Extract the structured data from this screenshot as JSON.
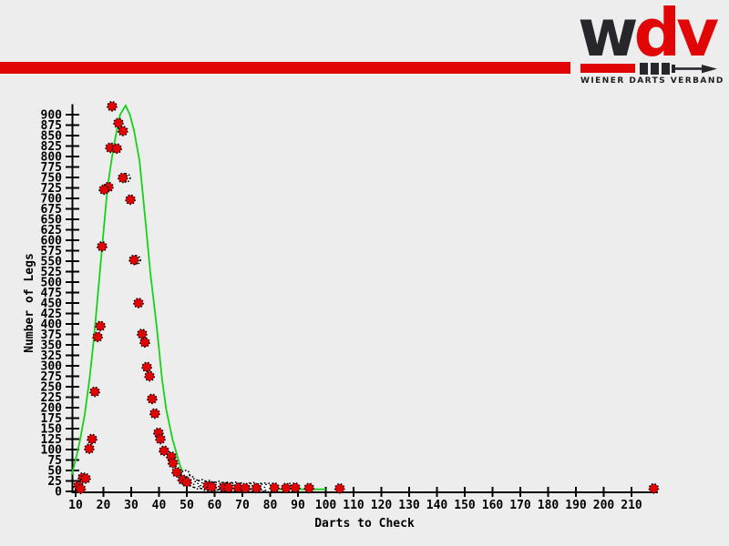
{
  "page": {
    "background": "#ededed"
  },
  "header": {
    "stripe_color": "#e20505"
  },
  "logo": {
    "letters": [
      {
        "char": "w",
        "color": "#26262b"
      },
      {
        "char": "d",
        "color": "#e20505"
      },
      {
        "char": "v",
        "color": "#e20505"
      }
    ],
    "tagline": "WIENER DARTS VERBAND",
    "tagline_color": "#1d1d22",
    "dart_colors": {
      "shaft": "#e20505",
      "dark": "#26262b"
    }
  },
  "chart_data": {
    "type": "scatter",
    "title": "",
    "xlabel": "Darts to Check",
    "ylabel": "Number of Legs",
    "x_axis": {
      "min": 10,
      "max": 218,
      "tick_start": 10,
      "tick_end": 210,
      "tick_step": 10,
      "grid": false
    },
    "y_axis": {
      "min": 0,
      "max": 925,
      "tick_start": 0,
      "tick_end": 900,
      "tick_step": 25,
      "grid": false
    },
    "legend": "none",
    "colors": {
      "filled": "#e10000",
      "open_fill": "#ffffff",
      "marker_stroke": "#000000",
      "curve": "#16d216",
      "axis": "#000000"
    },
    "series": [
      {
        "name": "legs-per-darts-filled",
        "marker": "filled-circle",
        "points": [
          [
            23.1,
            920
          ],
          [
            25.4,
            880
          ],
          [
            27.0,
            861
          ],
          [
            22.5,
            821
          ],
          [
            24.8,
            819
          ],
          [
            21.8,
            727
          ],
          [
            20.2,
            721
          ],
          [
            27.0,
            749
          ],
          [
            29.7,
            697
          ],
          [
            19.5,
            585
          ],
          [
            31.0,
            553
          ],
          [
            32.6,
            450
          ],
          [
            18.9,
            395
          ],
          [
            33.9,
            376
          ],
          [
            17.9,
            369
          ],
          [
            34.9,
            356
          ],
          [
            35.6,
            297
          ],
          [
            36.6,
            275
          ],
          [
            16.9,
            238
          ],
          [
            37.5,
            221
          ],
          [
            38.5,
            186
          ],
          [
            39.8,
            140
          ],
          [
            15.9,
            125
          ],
          [
            40.5,
            125
          ],
          [
            14.9,
            102
          ],
          [
            41.8,
            97
          ],
          [
            44.4,
            83
          ],
          [
            45.0,
            68
          ],
          [
            46.4,
            46
          ],
          [
            12.6,
            33
          ],
          [
            13.6,
            31
          ],
          [
            48.5,
            28
          ],
          [
            50.0,
            22
          ],
          [
            11.0,
            13
          ],
          [
            57.5,
            13
          ],
          [
            59.0,
            11
          ],
          [
            63.5,
            10
          ],
          [
            11.8,
            6
          ],
          [
            65.0,
            9
          ],
          [
            68.5,
            9
          ],
          [
            71.0,
            8
          ],
          [
            75.0,
            8
          ],
          [
            81.5,
            9
          ],
          [
            85.7,
            8
          ],
          [
            89.0,
            9
          ],
          [
            94.0,
            8
          ],
          [
            105.0,
            7
          ],
          [
            218.0,
            7
          ]
        ]
      },
      {
        "name": "legs-per-darts-open",
        "marker": "open-circle",
        "points": [
          [
            28.1,
            749
          ],
          [
            31.8,
            553
          ],
          [
            49.5,
            40
          ],
          [
            51.0,
            28
          ],
          [
            52.5,
            20
          ],
          [
            54.0,
            16
          ],
          [
            55.5,
            18
          ],
          [
            56.5,
            13
          ],
          [
            58.0,
            16
          ],
          [
            60.0,
            12
          ],
          [
            61.5,
            14
          ],
          [
            63.0,
            11
          ],
          [
            64.5,
            12
          ],
          [
            66.0,
            11
          ],
          [
            67.5,
            12
          ],
          [
            69.5,
            10
          ],
          [
            72.5,
            10
          ],
          [
            74.0,
            11
          ],
          [
            76.5,
            9
          ],
          [
            78.0,
            10
          ],
          [
            79.5,
            9
          ],
          [
            87.0,
            9
          ]
        ]
      },
      {
        "name": "fit-curve",
        "marker": "line",
        "points": [
          [
            8.6,
            40
          ],
          [
            10,
            75
          ],
          [
            11.5,
            120
          ],
          [
            13.3,
            185
          ],
          [
            15,
            270
          ],
          [
            16.5,
            360
          ],
          [
            18,
            470
          ],
          [
            19.8,
            604
          ],
          [
            21.5,
            728
          ],
          [
            23.1,
            800
          ],
          [
            24.4,
            848
          ],
          [
            26,
            900
          ],
          [
            28,
            922
          ],
          [
            29.5,
            900
          ],
          [
            31,
            862
          ],
          [
            33,
            790
          ],
          [
            35.2,
            640
          ],
          [
            36.9,
            522
          ],
          [
            39.2,
            391
          ],
          [
            41.1,
            267
          ],
          [
            42.6,
            196
          ],
          [
            44.9,
            124
          ],
          [
            47.4,
            65
          ],
          [
            49.3,
            33
          ],
          [
            51.6,
            15
          ],
          [
            54.9,
            8
          ],
          [
            60,
            5
          ],
          [
            70,
            5
          ],
          [
            80,
            5
          ],
          [
            90,
            5
          ],
          [
            100,
            5
          ]
        ]
      }
    ]
  }
}
